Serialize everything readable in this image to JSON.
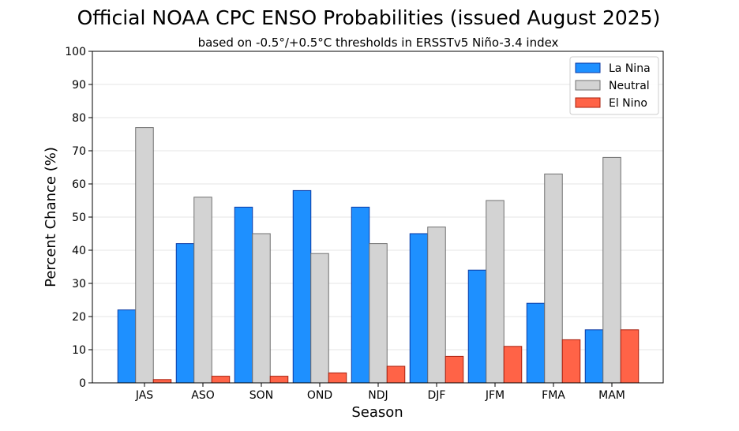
{
  "chart_data": {
    "type": "bar",
    "title": "Official NOAA CPC ENSO Probabilities (issued August 2025)",
    "subtitle": "based on -0.5°/+0.5°C thresholds in ERSSTv5 Niño-3.4 index",
    "xlabel": "Season",
    "ylabel": "Percent Chance (%)",
    "ylim": [
      0,
      100
    ],
    "yticks": [
      0,
      10,
      20,
      30,
      40,
      50,
      60,
      70,
      80,
      90,
      100
    ],
    "grid": true,
    "legend_position": "top-right",
    "categories": [
      "JAS",
      "ASO",
      "SON",
      "OND",
      "NDJ",
      "DJF",
      "JFM",
      "FMA",
      "MAM"
    ],
    "series": [
      {
        "name": "La Nina",
        "color": "#1e90ff",
        "edge": "#0a3aa6",
        "values": [
          22,
          42,
          53,
          58,
          53,
          45,
          34,
          24,
          16
        ]
      },
      {
        "name": "Neutral",
        "color": "#d3d3d3",
        "edge": "#707070",
        "values": [
          77,
          56,
          45,
          39,
          42,
          47,
          55,
          63,
          68
        ]
      },
      {
        "name": "El Nino",
        "color": "#ff6347",
        "edge": "#a8200e",
        "values": [
          1,
          2,
          2,
          3,
          5,
          8,
          11,
          13,
          16
        ]
      }
    ]
  }
}
